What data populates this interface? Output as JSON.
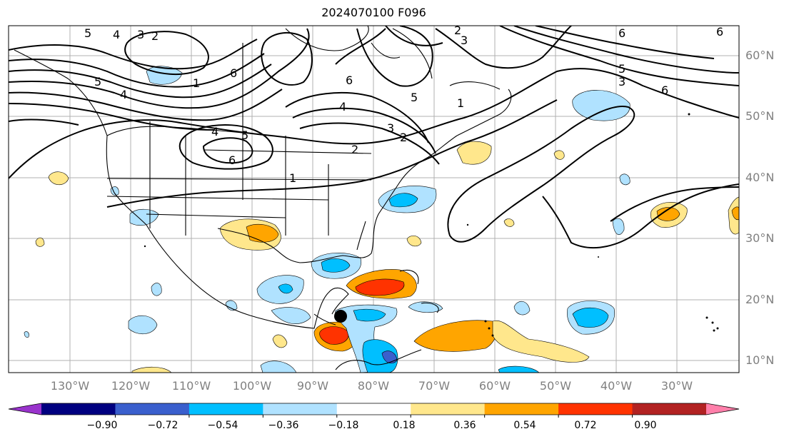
{
  "title": "2024070100 F096",
  "longitude_labels": [
    "130°W",
    "120°W",
    "110°W",
    "100°W",
    "90°W",
    "80°W",
    "70°W",
    "60°W",
    "50°W",
    "40°W",
    "30°W"
  ],
  "latitude_labels": [
    "60°N",
    "50°N",
    "40°N",
    "30°N",
    "20°N",
    "10°N"
  ],
  "colorbar": {
    "ticks": [
      "−0.90",
      "−0.72",
      "−0.54",
      "−0.36",
      "−0.18",
      "0.18",
      "0.36",
      "0.54",
      "0.72",
      "0.90"
    ],
    "colors": [
      "#9933cc",
      "#000080",
      "#3a5fcd",
      "#00bfff",
      "#b0e2ff",
      "#ffffff",
      "#ffe78c",
      "#ffa500",
      "#ff3300",
      "#b22222",
      "#ff7faa"
    ]
  },
  "contour_labels": [
    "5",
    "4",
    "3",
    "2",
    "1",
    "6",
    "5",
    "4",
    "1",
    "4",
    "5",
    "6",
    "1",
    "4",
    "3",
    "2",
    "6",
    "5",
    "6",
    "6",
    "5",
    "3",
    "6",
    "2",
    "3",
    "5",
    "2"
  ],
  "marker": "storm-center-dot"
}
